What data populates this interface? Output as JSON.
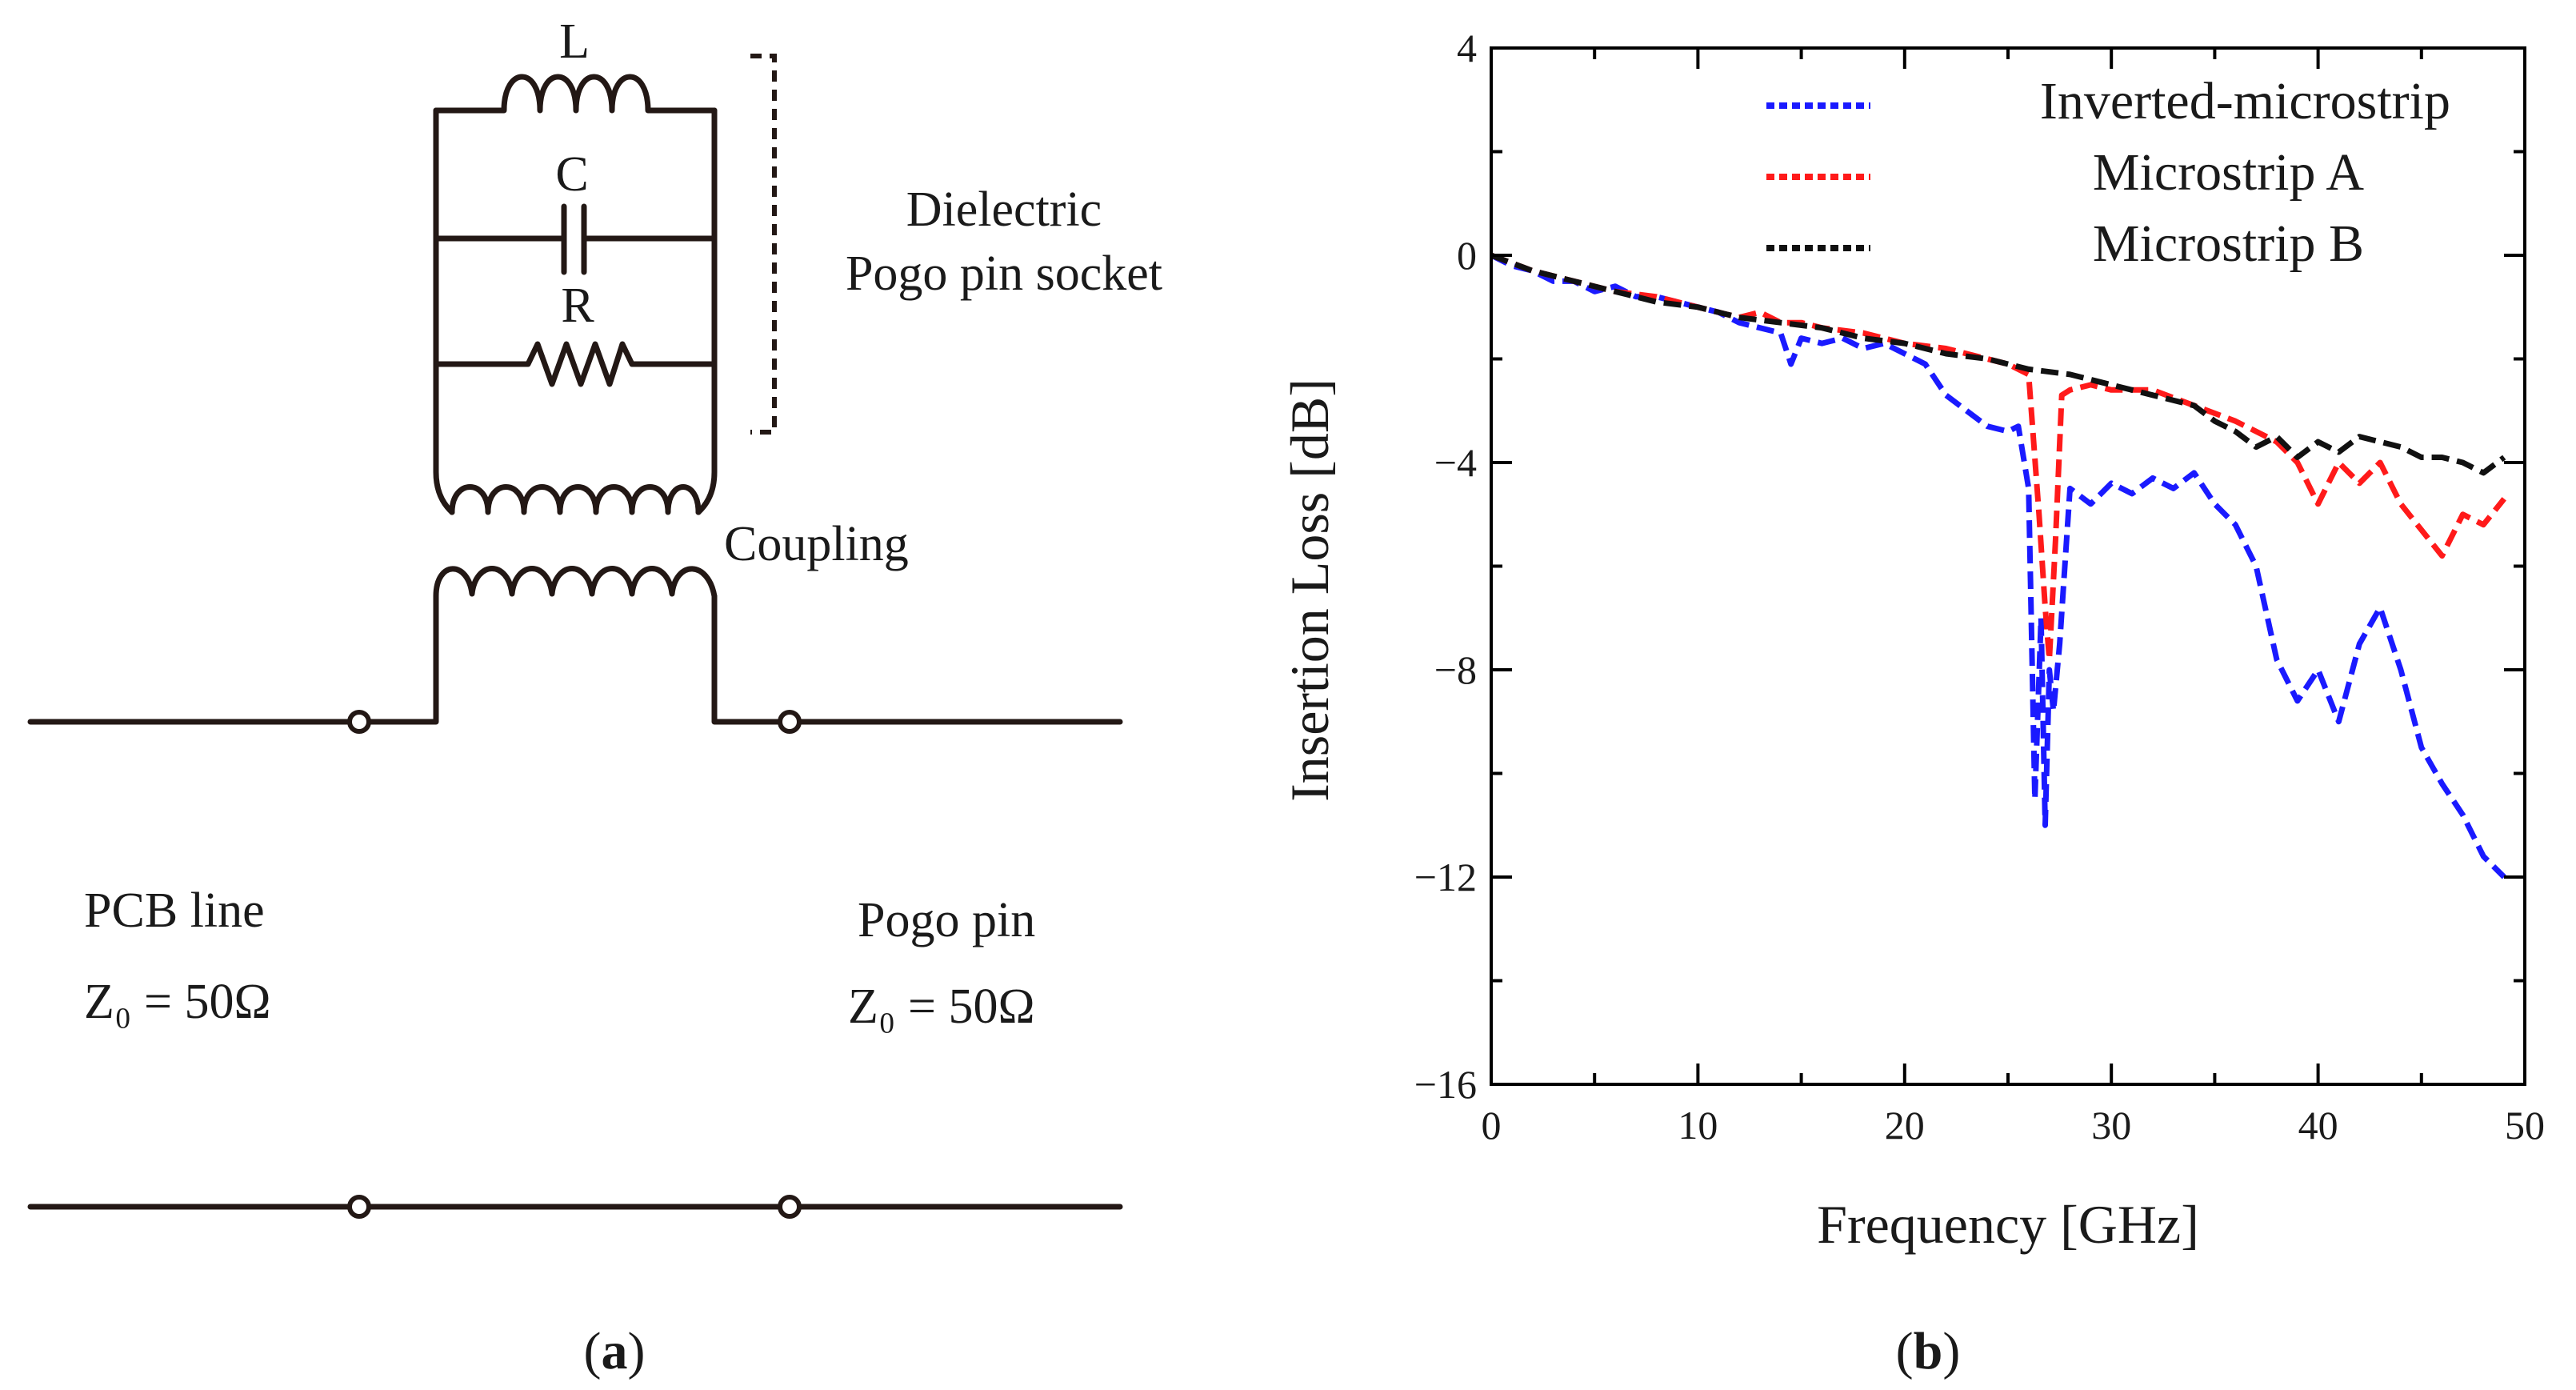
{
  "circuit": {
    "inductor_label": "L",
    "capacitor_label": "C",
    "resistor_label": "R",
    "bracket_label_line1": "Dielectric",
    "bracket_label_line2": "Pogo pin socket",
    "coupling_label": "Coupling",
    "pcb_line_label": "PCB line",
    "pcb_line_impedance": "Z₀ = 50Ω",
    "pogo_pin_label": "Pogo pin",
    "pogo_pin_impedance": "Z₀ = 50Ω",
    "caption_open": "(",
    "caption_letter": "a",
    "caption_close": ")"
  },
  "panel_b": {
    "caption_open": "(",
    "caption_letter": "b",
    "caption_close": ")"
  },
  "chart_data": {
    "type": "line",
    "title": "",
    "xlabel": "Frequency  [GHz]",
    "ylabel": "Insertion Loss [dB]",
    "xlim": [
      0,
      50
    ],
    "ylim": [
      -16,
      4
    ],
    "xticks": [
      0,
      10,
      20,
      30,
      40,
      50
    ],
    "yticks": [
      4,
      0,
      -4,
      -8,
      -12,
      -16
    ],
    "ytick_labels": [
      "4",
      "0",
      "−4",
      "−8",
      "−12",
      "−16"
    ],
    "grid": false,
    "legend_position": "top-right",
    "series": [
      {
        "name": "Inverted-microstrip",
        "color": "#1a1aff",
        "style": "dashed",
        "x": [
          0,
          1,
          2,
          3,
          4,
          5,
          6,
          7,
          8,
          9,
          10,
          11,
          12,
          13,
          14,
          14.5,
          15,
          16,
          17,
          18,
          19,
          20,
          21,
          22,
          23,
          24,
          25,
          25.5,
          26,
          26.3,
          26.6,
          26.8,
          27,
          27.2,
          27.5,
          28,
          29,
          30,
          31,
          32,
          33,
          34,
          35,
          36,
          37,
          38,
          39,
          40,
          41,
          42,
          43,
          44,
          45,
          46,
          47,
          48,
          49
        ],
        "values": [
          0,
          -0.2,
          -0.3,
          -0.5,
          -0.5,
          -0.7,
          -0.6,
          -0.8,
          -0.8,
          -0.9,
          -1.0,
          -1.1,
          -1.3,
          -1.4,
          -1.5,
          -2.1,
          -1.6,
          -1.7,
          -1.6,
          -1.8,
          -1.7,
          -1.9,
          -2.1,
          -2.7,
          -3.0,
          -3.3,
          -3.4,
          -3.3,
          -4.5,
          -10.5,
          -7.0,
          -11.0,
          -8.0,
          -8.8,
          -7.5,
          -4.5,
          -4.8,
          -4.4,
          -4.6,
          -4.3,
          -4.5,
          -4.2,
          -4.8,
          -5.2,
          -6.0,
          -7.8,
          -8.6,
          -8.0,
          -9.0,
          -7.5,
          -6.8,
          -8.0,
          -9.5,
          -10.2,
          -10.8,
          -11.6,
          -12.0
        ]
      },
      {
        "name": "Microstrip A",
        "color": "#ff1a1a",
        "style": "dashed",
        "x": [
          0,
          2,
          4,
          6,
          8,
          10,
          12,
          13,
          14,
          15,
          16,
          18,
          20,
          22,
          24,
          25,
          26,
          26.5,
          26.8,
          27,
          27.3,
          27.6,
          28,
          29,
          30,
          32,
          34,
          36,
          38,
          39,
          40,
          41,
          42,
          43,
          44,
          45,
          46,
          47,
          48,
          49
        ],
        "values": [
          0,
          -0.3,
          -0.5,
          -0.7,
          -0.8,
          -1.0,
          -1.2,
          -1.1,
          -1.3,
          -1.3,
          -1.4,
          -1.5,
          -1.7,
          -1.8,
          -2.0,
          -2.1,
          -2.3,
          -5.0,
          -6.8,
          -7.8,
          -5.5,
          -2.7,
          -2.6,
          -2.5,
          -2.6,
          -2.6,
          -2.9,
          -3.2,
          -3.6,
          -4.0,
          -4.8,
          -4.0,
          -4.4,
          -4.0,
          -4.8,
          -5.3,
          -5.8,
          -5.0,
          -5.2,
          -4.7
        ]
      },
      {
        "name": "Microstrip B",
        "color": "#111111",
        "style": "dashed",
        "x": [
          0,
          2,
          4,
          6,
          8,
          10,
          12,
          14,
          16,
          18,
          20,
          22,
          24,
          26,
          28,
          30,
          32,
          34,
          35,
          36,
          37,
          38,
          39,
          40,
          41,
          42,
          43,
          44,
          45,
          46,
          47,
          48,
          49
        ],
        "values": [
          0,
          -0.3,
          -0.5,
          -0.7,
          -0.9,
          -1.0,
          -1.2,
          -1.3,
          -1.4,
          -1.6,
          -1.7,
          -1.9,
          -2.0,
          -2.2,
          -2.3,
          -2.5,
          -2.7,
          -2.9,
          -3.2,
          -3.4,
          -3.7,
          -3.5,
          -3.9,
          -3.6,
          -3.8,
          -3.5,
          -3.6,
          -3.7,
          -3.9,
          -3.9,
          -4.0,
          -4.2,
          -3.9
        ]
      }
    ]
  }
}
